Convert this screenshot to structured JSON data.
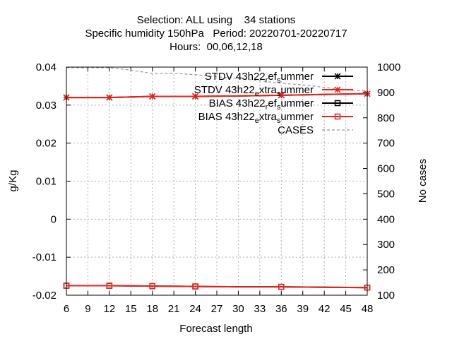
{
  "chart_data": {
    "type": "line",
    "title_lines": [
      "Selection: ALL using    34 stations",
      "Specific humidity 150hPa   Period: 20220701-20220717",
      "Hours:  00,06,12,18"
    ],
    "xlabel": "Forecast length",
    "ylabel": "g/Kg",
    "y2label": "No cases",
    "xlim": [
      6,
      48
    ],
    "xticks": [
      6,
      9,
      12,
      15,
      18,
      21,
      24,
      27,
      30,
      33,
      36,
      39,
      42,
      45,
      48
    ],
    "ylim": [
      -0.02,
      0.04
    ],
    "yticks": [
      -0.02,
      -0.01,
      0,
      0.01,
      0.02,
      0.03,
      0.04
    ],
    "ytick_labels": [
      "-0.02",
      "-0.01",
      "0",
      "0.01",
      "0.02",
      "0.03",
      "0.04"
    ],
    "y2lim": [
      100,
      1000
    ],
    "y2ticks": [
      100,
      200,
      300,
      400,
      500,
      600,
      700,
      800,
      900,
      1000
    ],
    "grid": true,
    "legend_position": "top-right",
    "x": [
      6,
      12,
      18,
      24,
      30,
      36,
      42,
      48
    ],
    "series": [
      {
        "legend": {
          "main": "STDV 43h22",
          "sub1": "r",
          "mid": "ef",
          "sub2": "s",
          "tail": "ummer"
        },
        "axis": "y1",
        "color": "#000000",
        "marker": "star",
        "values": [
          0.032,
          0.032,
          0.0323,
          0.0323,
          0.0324,
          0.0326,
          0.0328,
          0.033
        ]
      },
      {
        "legend": {
          "main": "STDV 43h22",
          "sub1": "e",
          "mid": "xtra",
          "sub2": "s",
          "tail": "ummer"
        },
        "axis": "y1",
        "color": "#e8251b",
        "marker": "star",
        "values": [
          0.032,
          0.032,
          0.0323,
          0.0323,
          0.0324,
          0.0326,
          0.0328,
          0.033
        ]
      },
      {
        "legend": {
          "main": "BIAS 43h22",
          "sub1": "r",
          "mid": "ef",
          "sub2": "s",
          "tail": "ummer"
        },
        "axis": "y1",
        "color": "#000000",
        "marker": "square",
        "values": [
          -0.0175,
          -0.0175,
          -0.0176,
          -0.0177,
          -0.0178,
          -0.0178,
          -0.0179,
          -0.018
        ]
      },
      {
        "legend": {
          "main": "BIAS 43h22",
          "sub1": "e",
          "mid": "xtra",
          "sub2": "s",
          "tail": "ummer"
        },
        "axis": "y1",
        "color": "#e8251b",
        "marker": "square",
        "values": [
          -0.0175,
          -0.0175,
          -0.0176,
          -0.0177,
          -0.0178,
          -0.0178,
          -0.0179,
          -0.018
        ]
      }
    ],
    "cases": {
      "legend": "CASES",
      "axis": "y2",
      "color": "#999999",
      "dash": true,
      "x": [
        6,
        9,
        12,
        15,
        18,
        21,
        24,
        27,
        30,
        33,
        36,
        39,
        42,
        45,
        48
      ],
      "values": [
        998,
        998,
        998,
        988,
        975,
        975,
        970,
        962,
        955,
        946,
        936,
        930,
        920,
        910,
        905
      ]
    }
  }
}
